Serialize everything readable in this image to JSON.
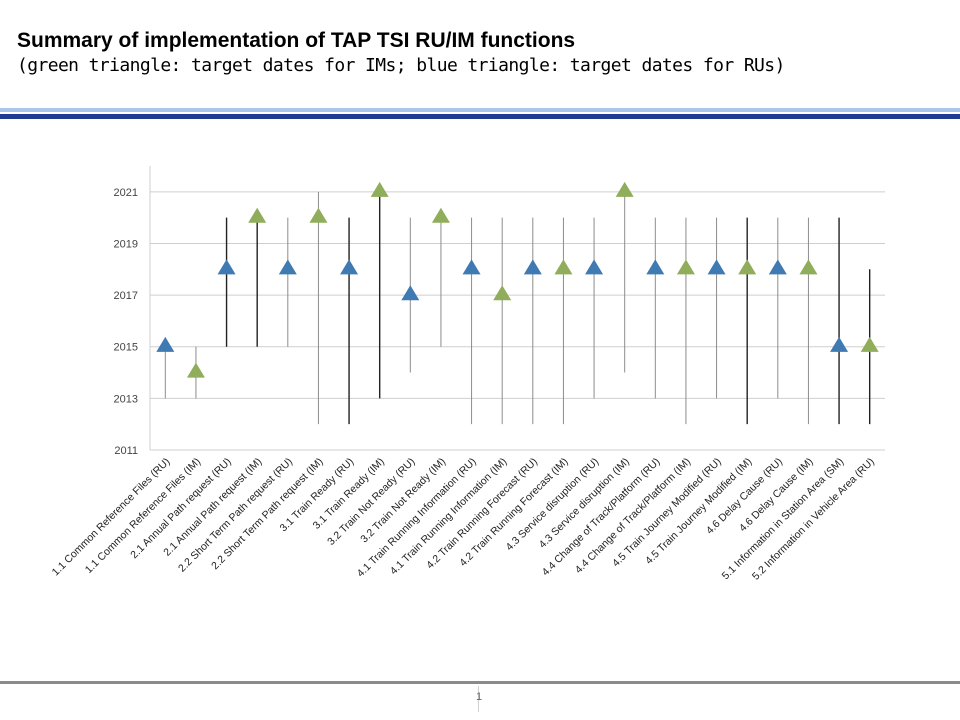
{
  "slide": {
    "title": "Summary of implementation of TAP TSI RU/IM functions",
    "subtitle": "(green triangle: target dates for IMs; blue triangle: target dates for RUs)",
    "page_number": "1"
  },
  "colors": {
    "im_marker": "#8fad5a",
    "ru_marker": "#3f7ab3",
    "band_light": "#a9c7ea",
    "band_dark": "#1f3c8f",
    "grid": "#cfcfcf",
    "range_line": "#8c8c8c",
    "range_line_dark": "#222222"
  },
  "chart_data": {
    "type": "scatter",
    "title": "",
    "xlabel": "",
    "ylabel": "",
    "ylim": [
      2011,
      2022
    ],
    "yticks": [
      2011,
      2013,
      2015,
      2017,
      2019,
      2021
    ],
    "grid": "horizontal",
    "categories": [
      "1.1 Common Reference Files (RU)",
      "1.1 Common Reference Files (IM)",
      "2.1 Annual Path request  (RU)",
      "2.1 Annual Path request  (IM)",
      "2.2 Short Term Path request  (RU)",
      "2.2 Short Term Path request  (IM)",
      "3.1 Train Ready  (RU)",
      "3.1 Train Ready  (IM)",
      "3.2 Train Not Ready  (RU)",
      "3.2 Train Not Ready  (IM)",
      "4.1 Train Running Information (RU)",
      "4.1 Train Running Information  (IM)",
      "4.2 Train Running Forecast (RU)",
      "4.2 Train Running Forecast (IM)",
      "4.3 Service disruption  (RU)",
      "4.3 Service disruption  (IM)",
      "4.4 Change of Track/Platform  (RU)",
      "4.4 Change of Track/Platform  (IM)",
      "4.5 Train Journey Modified  (RU)",
      "4.5 Train Journey Modified  (IM)",
      "4.6 Delay Cause (RU)",
      "4.6 Delay Cause (IM)",
      "5.1 Information in Station Area (SM)",
      "5.2 Information in Vehicle Area (RU)"
    ],
    "series": [
      {
        "marker": "triangle",
        "color": "#3f7ab3",
        "points": [
          {
            "category": "1.1 Common Reference Files (RU)",
            "y": 2015
          },
          {
            "category": "2.1 Annual Path request  (RU)",
            "y": 2018
          },
          {
            "category": "2.2 Short Term Path request  (RU)",
            "y": 2018
          },
          {
            "category": "3.1 Train Ready  (RU)",
            "y": 2018
          },
          {
            "category": "3.2 Train Not Ready  (RU)",
            "y": 2017
          },
          {
            "category": "4.1 Train Running Information (RU)",
            "y": 2018
          },
          {
            "category": "4.2 Train Running Forecast (RU)",
            "y": 2018
          },
          {
            "category": "4.3 Service disruption  (RU)",
            "y": 2018
          },
          {
            "category": "4.4 Change of Track/Platform  (RU)",
            "y": 2018
          },
          {
            "category": "4.5 Train Journey Modified  (RU)",
            "y": 2018
          },
          {
            "category": "4.6 Delay Cause (RU)",
            "y": 2018
          },
          {
            "category": "5.1 Information in Station Area (SM)",
            "y": 2015
          }
        ]
      },
      {
        "marker": "triangle",
        "color": "#8fad5a",
        "points": [
          {
            "category": "1.1 Common Reference Files (IM)",
            "y": 2014
          },
          {
            "category": "2.1 Annual Path request  (IM)",
            "y": 2020
          },
          {
            "category": "2.2 Short Term Path request  (IM)",
            "y": 2020
          },
          {
            "category": "3.1 Train Ready  (IM)",
            "y": 2021
          },
          {
            "category": "3.2 Train Not Ready  (IM)",
            "y": 2020
          },
          {
            "category": "4.1 Train Running Information  (IM)",
            "y": 2017
          },
          {
            "category": "4.2 Train Running Forecast (IM)",
            "y": 2018
          },
          {
            "category": "4.3 Service disruption  (IM)",
            "y": 2021
          },
          {
            "category": "4.4 Change of Track/Platform  (IM)",
            "y": 2018
          },
          {
            "category": "4.5 Train Journey Modified  (IM)",
            "y": 2018
          },
          {
            "category": "4.6 Delay Cause (IM)",
            "y": 2018
          },
          {
            "category": "5.2 Information in Vehicle Area (RU)",
            "y": 2015
          }
        ]
      }
    ],
    "ranges": [
      {
        "low": 2013,
        "high": 2015,
        "dark": false
      },
      {
        "low": 2013,
        "high": 2015,
        "dark": false
      },
      {
        "low": 2015,
        "high": 2020,
        "dark": true
      },
      {
        "low": 2015,
        "high": 2020,
        "dark": true
      },
      {
        "low": 2015,
        "high": 2020,
        "dark": false
      },
      {
        "low": 2012,
        "high": 2021,
        "dark": false
      },
      {
        "low": 2012,
        "high": 2020,
        "dark": true
      },
      {
        "low": 2013,
        "high": 2021,
        "dark": true
      },
      {
        "low": 2014,
        "high": 2020,
        "dark": false
      },
      {
        "low": 2015,
        "high": 2020,
        "dark": false
      },
      {
        "low": 2012,
        "high": 2020,
        "dark": false
      },
      {
        "low": 2012,
        "high": 2020,
        "dark": false
      },
      {
        "low": 2012,
        "high": 2020,
        "dark": false
      },
      {
        "low": 2012,
        "high": 2020,
        "dark": false
      },
      {
        "low": 2013,
        "high": 2020,
        "dark": false
      },
      {
        "low": 2014,
        "high": 2021,
        "dark": false
      },
      {
        "low": 2013,
        "high": 2020,
        "dark": false
      },
      {
        "low": 2012,
        "high": 2020,
        "dark": false
      },
      {
        "low": 2013,
        "high": 2020,
        "dark": false
      },
      {
        "low": 2012,
        "high": 2020,
        "dark": true
      },
      {
        "low": 2013,
        "high": 2020,
        "dark": false
      },
      {
        "low": 2012,
        "high": 2020,
        "dark": false
      },
      {
        "low": 2012,
        "high": 2020,
        "dark": true
      },
      {
        "low": 2012,
        "high": 2018,
        "dark": true
      }
    ]
  }
}
